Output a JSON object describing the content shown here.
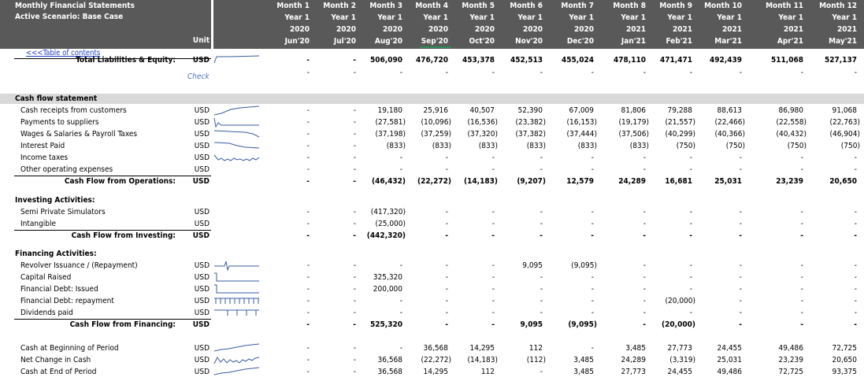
{
  "header": {
    "title": "Monthly Financial Statements",
    "scenario": "Active Scenario: Base Case",
    "unit_label": "Unit",
    "months": [
      {
        "m": "Month 1",
        "y": "Year 1",
        "yr": "2020",
        "d": "Jun'20"
      },
      {
        "m": "Month 2",
        "y": "Year 1",
        "yr": "2020",
        "d": "Jul'20"
      },
      {
        "m": "Month 3",
        "y": "Year 1",
        "yr": "2020",
        "d": "Aug'20"
      },
      {
        "m": "Month 4",
        "y": "Year 1",
        "yr": "2020",
        "d": "Sep'20"
      },
      {
        "m": "Month 5",
        "y": "Year 1",
        "yr": "2020",
        "d": "Oct'20"
      },
      {
        "m": "Month 6",
        "y": "Year 1",
        "yr": "2020",
        "d": "Nov'20"
      },
      {
        "m": "Month 7",
        "y": "Year 1",
        "yr": "2020",
        "d": "Dec'20"
      },
      {
        "m": "Month 8",
        "y": "Year 1",
        "yr": "2021",
        "d": "Jan'21"
      },
      {
        "m": "Month 9",
        "y": "Year 1",
        "yr": "2021",
        "d": "Feb'21"
      },
      {
        "m": "Month 10",
        "y": "Year 1",
        "yr": "2021",
        "d": "Mar'21"
      },
      {
        "m": "Month 11",
        "y": "Year 1",
        "yr": "2021",
        "d": "Apr'21"
      },
      {
        "m": "Month 12",
        "y": "Year 1",
        "yr": "2021",
        "d": "May'21"
      }
    ]
  },
  "toc_link": "<<<Table of contents",
  "check_label": "Check",
  "rows": [
    {
      "label": "Total Liabilities & Equity:",
      "unit": "USD",
      "kind": "total",
      "y": 76,
      "spark": "up",
      "vals": [
        "-",
        "-",
        "506,090",
        "476,720",
        "453,378",
        "452,513",
        "455,024",
        "478,110",
        "471,471",
        "492,439",
        "511,068",
        "527,137"
      ]
    },
    {
      "label": "",
      "unit": "",
      "kind": "check",
      "y": 92,
      "vals": [
        "-",
        "-",
        "-",
        "-",
        "-",
        "-",
        "-",
        "-",
        "-",
        "-",
        "-",
        "-"
      ]
    },
    {
      "label": "Cash flow statement",
      "unit": "",
      "kind": "section",
      "y": 125,
      "vals": []
    },
    {
      "label": "Cash receipts from customers",
      "unit": "USD",
      "kind": "item",
      "y": 140,
      "spark": "rise",
      "vals": [
        "-",
        "-",
        "19,180",
        "25,916",
        "40,507",
        "52,390",
        "67,009",
        "81,806",
        "79,288",
        "88,613",
        "86,980",
        "91,068"
      ]
    },
    {
      "label": "Payments to suppliers",
      "unit": "USD",
      "kind": "item",
      "y": 155,
      "spark": "drop",
      "vals": [
        "-",
        "-",
        "(27,581)",
        "(10,096)",
        "(16,536)",
        "(23,382)",
        "(16,153)",
        "(19,179)",
        "(21,557)",
        "(22,466)",
        "(22,558)",
        "(22,763)"
      ]
    },
    {
      "label": "Wages & Salaries & Payroll Taxes",
      "unit": "USD",
      "kind": "item",
      "y": 170,
      "spark": "fall",
      "vals": [
        "-",
        "-",
        "(37,198)",
        "(37,259)",
        "(37,320)",
        "(37,382)",
        "(37,444)",
        "(37,506)",
        "(40,299)",
        "(40,366)",
        "(40,432)",
        "(46,904)"
      ]
    },
    {
      "label": "Interest Paid",
      "unit": "USD",
      "kind": "item",
      "y": 185,
      "spark": "fall2",
      "vals": [
        "-",
        "-",
        "(833)",
        "(833)",
        "(833)",
        "(833)",
        "(833)",
        "(833)",
        "(750)",
        "(750)",
        "(750)",
        "(750)"
      ]
    },
    {
      "label": "Income taxes",
      "unit": "USD",
      "kind": "item",
      "y": 200,
      "spark": "wave",
      "vals": [
        "-",
        "-",
        "-",
        "-",
        "-",
        "-",
        "-",
        "-",
        "-",
        "-",
        "-",
        "-"
      ]
    },
    {
      "label": "Other operating expenses",
      "unit": "USD",
      "kind": "item",
      "y": 215,
      "spark": "none",
      "vals": [
        "-",
        "-",
        "-",
        "-",
        "-",
        "-",
        "-",
        "-",
        "-",
        "-",
        "-",
        "-"
      ]
    },
    {
      "label": "Cash Flow from Operations:",
      "unit": "USD",
      "kind": "total",
      "y": 230,
      "spark": "none",
      "vals": [
        "-",
        "-",
        "(46,432)",
        "(22,272)",
        "(14,183)",
        "(9,207)",
        "12,579",
        "24,289",
        "16,681",
        "25,031",
        "23,239",
        "20,650"
      ]
    },
    {
      "label": "Investing Activities:",
      "unit": "",
      "kind": "subsection",
      "y": 254,
      "vals": []
    },
    {
      "label": "Semi Private Simulators",
      "unit": "USD",
      "kind": "item",
      "y": 269,
      "spark": "none",
      "vals": [
        "-",
        "-",
        "(417,320)",
        "-",
        "-",
        "-",
        "-",
        "-",
        "-",
        "-",
        "-",
        "-"
      ]
    },
    {
      "label": "Intangible",
      "unit": "USD",
      "kind": "item",
      "y": 284,
      "spark": "none",
      "vals": [
        "-",
        "-",
        "(25,000)",
        "-",
        "-",
        "-",
        "-",
        "-",
        "-",
        "-",
        "-",
        "-"
      ]
    },
    {
      "label": "Cash Flow from Investing:",
      "unit": "USD",
      "kind": "total",
      "y": 299,
      "spark": "none",
      "vals": [
        "-",
        "-",
        "(442,320)",
        "-",
        "-",
        "-",
        "-",
        "-",
        "-",
        "-",
        "-",
        "-"
      ]
    },
    {
      "label": "Financing Activities:",
      "unit": "",
      "kind": "subsection",
      "y": 322,
      "vals": []
    },
    {
      "label": "Revolver Issuance / (Repayment)",
      "unit": "USD",
      "kind": "item",
      "y": 337,
      "spark": "spike",
      "vals": [
        "-",
        "-",
        "-",
        "-",
        "-",
        "9,095",
        "(9,095)",
        "-",
        "-",
        "-",
        "-",
        "-"
      ]
    },
    {
      "label": "Capital Raised",
      "unit": "USD",
      "kind": "item",
      "y": 352,
      "spark": "step",
      "vals": [
        "-",
        "-",
        "325,320",
        "-",
        "-",
        "-",
        "-",
        "-",
        "-",
        "-",
        "-",
        "-"
      ]
    },
    {
      "label": "Financial Debt: Issued",
      "unit": "USD",
      "kind": "item",
      "y": 367,
      "spark": "step",
      "vals": [
        "-",
        "-",
        "200,000",
        "-",
        "-",
        "-",
        "-",
        "-",
        "-",
        "-",
        "-",
        "-"
      ]
    },
    {
      "label": "Financial Debt: repayment",
      "unit": "USD",
      "kind": "item",
      "y": 382,
      "spark": "comb",
      "vals": [
        "-",
        "-",
        "-",
        "-",
        "-",
        "-",
        "-",
        "-",
        "(20,000)",
        "-",
        "-",
        "-"
      ]
    },
    {
      "label": "Dividends paid",
      "unit": "USD",
      "kind": "item",
      "y": 397,
      "spark": "comb2",
      "vals": [
        "-",
        "-",
        "-",
        "-",
        "-",
        "-",
        "-",
        "-",
        "-",
        "-",
        "-",
        "-"
      ]
    },
    {
      "label": "Cash Flow from Financing:",
      "unit": "USD",
      "kind": "total",
      "y": 412,
      "spark": "none",
      "vals": [
        "-",
        "-",
        "525,320",
        "-",
        "-",
        "9,095",
        "(9,095)",
        "-",
        "(20,000)",
        "-",
        "-",
        "-"
      ]
    },
    {
      "label": "Cash at Beginning of Period",
      "unit": "USD",
      "kind": "item",
      "y": 442,
      "spark": "rise2",
      "vals": [
        "-",
        "-",
        "-",
        "36,568",
        "14,295",
        "112",
        "-",
        "3,485",
        "27,773",
        "24,455",
        "49,486",
        "72,725"
      ]
    },
    {
      "label": "Net Change in Cash",
      "unit": "USD",
      "kind": "item",
      "y": 457,
      "spark": "wave2",
      "vals": [
        "-",
        "-",
        "36,568",
        "(22,272)",
        "(14,183)",
        "(112)",
        "3,485",
        "24,289",
        "(3,319)",
        "25,031",
        "23,239",
        "20,650"
      ]
    },
    {
      "label": "Cash at End of Period",
      "unit": "USD",
      "kind": "item",
      "y": 472,
      "spark": "rise2",
      "vals": [
        "-",
        "-",
        "36,568",
        "14,295",
        "112",
        "-",
        "3,485",
        "27,773",
        "24,455",
        "49,486",
        "72,725",
        "93,375"
      ]
    }
  ]
}
